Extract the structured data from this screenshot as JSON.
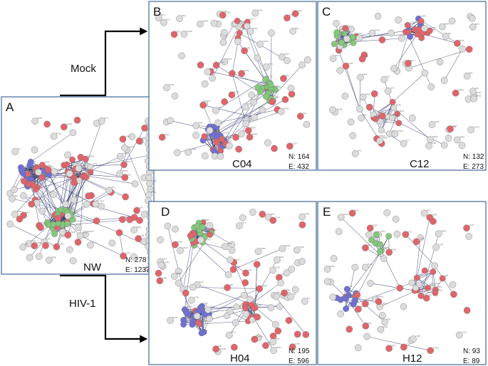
{
  "colors": {
    "gray": "#dcdcdc",
    "red": "#e0656b",
    "green": "#83c97a",
    "blue": "#6f6fd6",
    "edge": "#27306b",
    "border": "#5b7fa6"
  },
  "conditions": {
    "mock": "Mock",
    "hiv": "HIV-1"
  },
  "panels": [
    {
      "id": "A",
      "letter": "A",
      "label": "NW",
      "n": "N: 278",
      "e": "E: 1237"
    },
    {
      "id": "B",
      "letter": "B",
      "label": "C04",
      "n": "N: 164",
      "e": "E: 432"
    },
    {
      "id": "C",
      "letter": "C",
      "label": "C12",
      "n": "N: 132",
      "e": "E: 273"
    },
    {
      "id": "D",
      "letter": "D",
      "label": "H04",
      "n": "N: 195",
      "e": "E: 596"
    },
    {
      "id": "E",
      "letter": "E",
      "label": "H12",
      "n": "N: 93",
      "e": "E: 89"
    }
  ]
}
